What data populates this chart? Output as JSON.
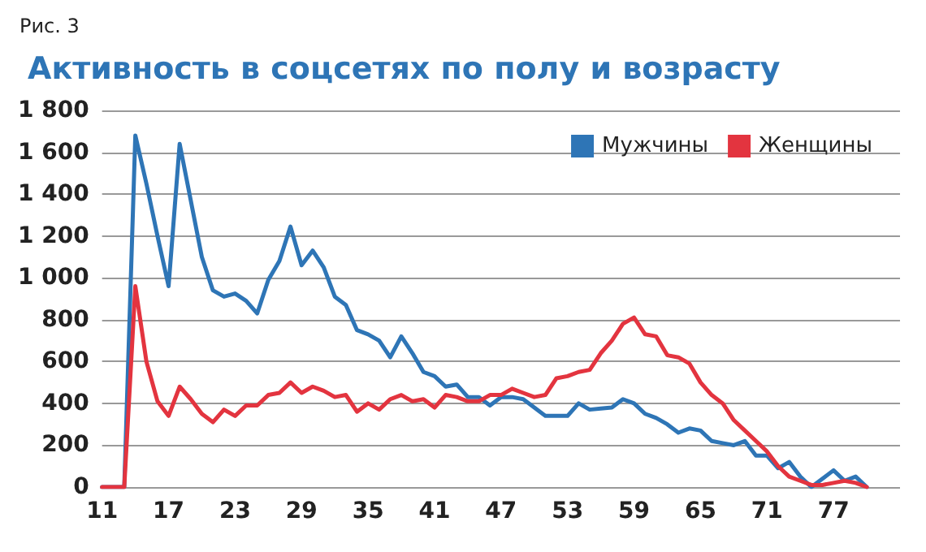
{
  "chart_data": {
    "type": "line",
    "title": "Активность в соцсетях по полу и возрасту",
    "annotations": [
      "Рис. 3"
    ],
    "x": [
      11,
      12,
      13,
      14,
      15,
      16,
      17,
      18,
      19,
      20,
      21,
      22,
      23,
      24,
      25,
      26,
      27,
      28,
      29,
      30,
      31,
      32,
      33,
      34,
      35,
      36,
      37,
      38,
      39,
      40,
      41,
      42,
      43,
      44,
      45,
      46,
      47,
      48,
      49,
      50,
      51,
      52,
      53,
      54,
      55,
      56,
      57,
      58,
      59,
      60,
      61,
      62,
      63,
      64,
      65,
      66,
      67,
      68,
      69,
      70,
      71,
      72,
      73,
      74,
      75,
      76,
      77,
      78,
      79,
      80
    ],
    "series": [
      {
        "name": "Мужчины",
        "color": "#2e75b6",
        "values": [
          0,
          0,
          0,
          1680,
          1450,
          1200,
          960,
          1640,
          1370,
          1100,
          940,
          910,
          925,
          890,
          830,
          990,
          1080,
          1245,
          1060,
          1130,
          1050,
          910,
          870,
          750,
          730,
          700,
          620,
          720,
          640,
          550,
          530,
          480,
          490,
          430,
          430,
          390,
          430,
          430,
          420,
          380,
          340,
          340,
          340,
          400,
          370,
          375,
          380,
          420,
          400,
          350,
          330,
          300,
          260,
          280,
          270,
          220,
          210,
          200,
          220,
          150,
          150,
          90,
          120,
          50,
          0,
          40,
          80,
          30,
          50,
          0
        ]
      },
      {
        "name": "Женщины",
        "color": "#e3343f",
        "values": [
          0,
          0,
          0,
          960,
          600,
          410,
          340,
          480,
          420,
          350,
          310,
          370,
          340,
          390,
          390,
          440,
          450,
          500,
          450,
          480,
          460,
          430,
          440,
          360,
          400,
          370,
          420,
          440,
          410,
          420,
          380,
          440,
          430,
          410,
          410,
          440,
          440,
          470,
          450,
          430,
          440,
          520,
          530,
          550,
          560,
          640,
          700,
          780,
          810,
          730,
          720,
          630,
          620,
          590,
          500,
          440,
          400,
          320,
          270,
          220,
          170,
          100,
          50,
          30,
          10,
          10,
          20,
          30,
          20,
          0
        ]
      }
    ],
    "xlim": [
      11,
      83
    ],
    "xticks": [
      11,
      17,
      23,
      29,
      35,
      41,
      47,
      53,
      59,
      65,
      71,
      77
    ],
    "ylim": [
      0,
      1800
    ],
    "yticks": [
      0,
      200,
      400,
      600,
      800,
      {
        "value": 1000,
        "label": "1 000"
      },
      {
        "value": 1200,
        "label": "1 200"
      },
      {
        "value": 1400,
        "label": "1 400"
      },
      {
        "value": 1600,
        "label": "1 600"
      },
      {
        "value": 1800,
        "label": "1 800"
      }
    ],
    "grid": "y",
    "legend": "top right",
    "marker": "none",
    "line_style": "solid"
  }
}
